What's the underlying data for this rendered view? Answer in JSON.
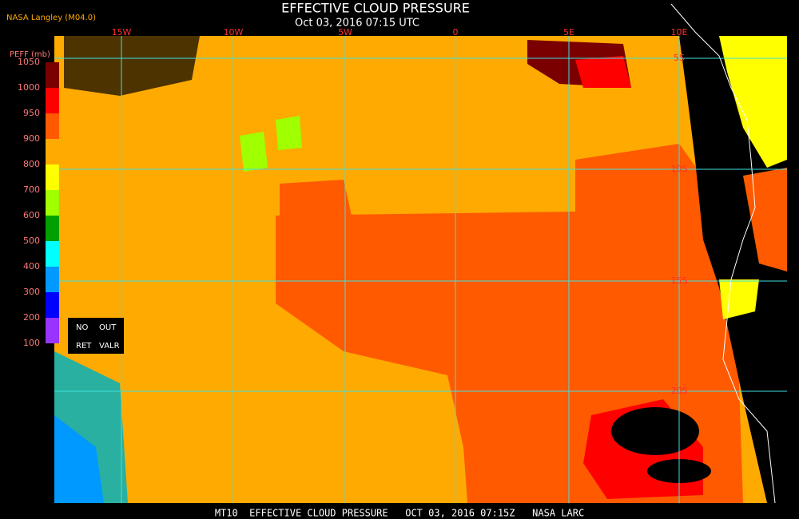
{
  "header": {
    "title": "EFFECTIVE CLOUD PRESSURE",
    "subtitle": "Oct 03, 2016 07:15 UTC",
    "credit": "NASA Langley (M04.0)"
  },
  "colorbar": {
    "label": "PEFF (mb)",
    "ticks": [
      1050,
      1000,
      950,
      900,
      800,
      700,
      600,
      500,
      400,
      300,
      200,
      100
    ],
    "colors": [
      "#7a0000",
      "#ff0000",
      "#ff5a00",
      "#ffaa00",
      "#ffff00",
      "#a0ff00",
      "#00a000",
      "#00ffff",
      "#0099ff",
      "#0000ff",
      "#9933ff"
    ]
  },
  "legend_box": {
    "rows": [
      [
        "NO",
        "OUT"
      ],
      [
        "RET",
        "VALR"
      ]
    ]
  },
  "grid": {
    "longitudes": [
      "15W",
      "10W",
      "5W",
      "0",
      "5E",
      "10E"
    ],
    "latitudes": [
      "5S",
      "10S",
      "15S",
      "20S"
    ]
  },
  "footer": "MT10  EFFECTIVE CLOUD PRESSURE   OCT 03, 2016 07:15Z   NASA LARC"
}
